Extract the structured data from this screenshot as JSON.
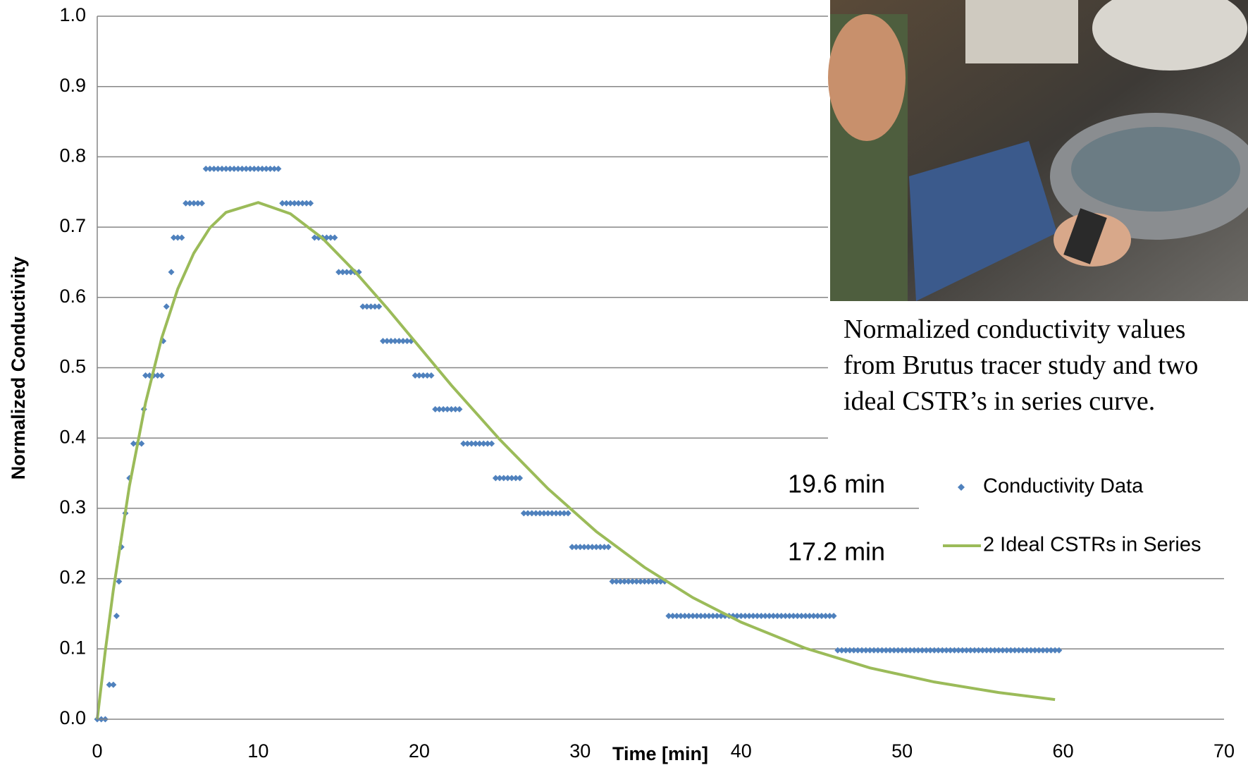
{
  "chart_data": {
    "type": "scatter",
    "xlabel": "Time [min]",
    "ylabel": "Normalized Conductivity",
    "xlim": [
      0,
      70
    ],
    "xticks": [
      0,
      10,
      20,
      30,
      40,
      50,
      60,
      70
    ],
    "ylim": [
      0,
      1
    ],
    "yticks": [
      {
        "value": 0,
        "label": "0.0"
      },
      0.1,
      0.2,
      0.3,
      0.4,
      0.5,
      0.6,
      0.7,
      0.8,
      0.9,
      {
        "value": 1,
        "label": "1.0"
      }
    ],
    "grid": true,
    "series": [
      {
        "name": "Conductivity Data",
        "type": "scatter",
        "color": "#4f81bd",
        "x": [
          0,
          0.25,
          0.5,
          0.75,
          1,
          1.2,
          1.35,
          1.5,
          1.75,
          2,
          2.25,
          2.5,
          2.75,
          2.9,
          3,
          3.25,
          3.5,
          3.75,
          4,
          4.1,
          4.3,
          4.6,
          4.75,
          5,
          5.25,
          5.5,
          5.75,
          6,
          6.25,
          6.5,
          6.75,
          7,
          7.25,
          7.5,
          7.75,
          8,
          8.25,
          8.5,
          8.75,
          9,
          9.25,
          9.5,
          9.75,
          10,
          10.25,
          10.5,
          10.75,
          11,
          11.25,
          11.5,
          11.75,
          12,
          12.25,
          12.5,
          12.75,
          13,
          13.25,
          13.5,
          13.75,
          14,
          14.25,
          14.5,
          14.75,
          15,
          15.25,
          15.5,
          15.75,
          16,
          16.25,
          16.5,
          16.75,
          17,
          17.25,
          17.5,
          17.75,
          18,
          18.25,
          18.5,
          18.75,
          19,
          19.25,
          19.5,
          19.75,
          20,
          20.25,
          20.5,
          20.75,
          21,
          21.25,
          21.5,
          21.75,
          22,
          22.25,
          22.5,
          22.75,
          23,
          23.25,
          23.5,
          23.75,
          24,
          24.25,
          24.5,
          24.75,
          25,
          25.25,
          25.5,
          25.75,
          26,
          26.25,
          26.5,
          26.75,
          27,
          27.25,
          27.5,
          27.75,
          28,
          28.25,
          28.5,
          28.75,
          29,
          29.25,
          29.5,
          29.75,
          30,
          30.25,
          30.5,
          30.75,
          31,
          31.25,
          31.5,
          31.75,
          32,
          32.25,
          32.5,
          32.75,
          33,
          33.25,
          33.5,
          33.75,
          34,
          34.25,
          34.5,
          34.75,
          35,
          35.25,
          35.5,
          35.75,
          36,
          36.25,
          36.5,
          36.75,
          37,
          37.25,
          37.5,
          37.75,
          38,
          38.25,
          38.5,
          38.75,
          39,
          39.25,
          39.5,
          39.75,
          40,
          40.25,
          40.5,
          40.75,
          41,
          41.25,
          41.5,
          41.75,
          42,
          42.25,
          42.5,
          42.75,
          43,
          43.25,
          43.5,
          43.75,
          44,
          44.25,
          44.5,
          44.75,
          45,
          45.25,
          45.5,
          45.75,
          46,
          46.25,
          46.5,
          46.75,
          47,
          47.25,
          47.5,
          47.75,
          48,
          48.25,
          48.5,
          48.75,
          49,
          49.25,
          49.5,
          49.75,
          50,
          50.25,
          50.5,
          50.75,
          51,
          51.25,
          51.5,
          51.75,
          52,
          52.25,
          52.5,
          52.75,
          53,
          53.25,
          53.5,
          53.75,
          54,
          54.25,
          54.5,
          54.75,
          55,
          55.25,
          55.5,
          55.75,
          56,
          56.25,
          56.5,
          56.75,
          57,
          57.25,
          57.5,
          57.75,
          58,
          58.25,
          58.5,
          58.75,
          59,
          59.25,
          59.5,
          59.75
        ],
        "values": [
          0,
          0,
          0,
          0.049,
          0.049,
          0.147,
          0.196,
          0.245,
          0.293,
          0.343,
          0.392,
          0.392,
          0.392,
          0.441,
          0.489,
          0.489,
          0.489,
          0.489,
          0.489,
          0.538,
          0.587,
          0.636,
          0.685,
          0.685,
          0.685,
          0.734,
          0.734,
          0.734,
          0.734,
          0.734,
          0.783,
          0.783,
          0.783,
          0.783,
          0.783,
          0.783,
          0.783,
          0.783,
          0.783,
          0.783,
          0.783,
          0.783,
          0.783,
          0.783,
          0.783,
          0.783,
          0.783,
          0.783,
          0.783,
          0.734,
          0.734,
          0.734,
          0.734,
          0.734,
          0.734,
          0.734,
          0.734,
          0.685,
          0.685,
          0.685,
          0.685,
          0.685,
          0.685,
          0.636,
          0.636,
          0.636,
          0.636,
          0.636,
          0.636,
          0.587,
          0.587,
          0.587,
          0.587,
          0.587,
          0.538,
          0.538,
          0.538,
          0.538,
          0.538,
          0.538,
          0.538,
          0.538,
          0.489,
          0.489,
          0.489,
          0.489,
          0.489,
          0.441,
          0.441,
          0.441,
          0.441,
          0.441,
          0.441,
          0.441,
          0.392,
          0.392,
          0.392,
          0.392,
          0.392,
          0.392,
          0.392,
          0.392,
          0.343,
          0.343,
          0.343,
          0.343,
          0.343,
          0.343,
          0.343,
          0.293,
          0.293,
          0.293,
          0.293,
          0.293,
          0.293,
          0.293,
          0.293,
          0.293,
          0.293,
          0.293,
          0.293,
          0.245,
          0.245,
          0.245,
          0.245,
          0.245,
          0.245,
          0.245,
          0.245,
          0.245,
          0.245,
          0.196,
          0.196,
          0.196,
          0.196,
          0.196,
          0.196,
          0.196,
          0.196,
          0.196,
          0.196,
          0.196,
          0.196,
          0.196,
          0.196,
          0.147,
          0.147,
          0.147,
          0.147,
          0.147,
          0.147,
          0.147,
          0.147,
          0.147,
          0.147,
          0.147,
          0.147,
          0.147,
          0.147,
          0.147,
          0.147,
          0.147,
          0.147,
          0.147,
          0.147,
          0.147,
          0.147,
          0.147,
          0.147,
          0.147,
          0.147,
          0.147,
          0.147,
          0.147,
          0.147,
          0.147,
          0.147,
          0.147,
          0.147,
          0.147,
          0.147,
          0.147,
          0.147,
          0.147,
          0.147,
          0.147,
          0.147,
          0.098,
          0.098,
          0.098,
          0.098,
          0.098,
          0.098,
          0.098,
          0.098,
          0.098,
          0.098,
          0.098,
          0.098,
          0.098,
          0.098,
          0.098,
          0.098,
          0.098,
          0.098,
          0.098,
          0.098,
          0.098,
          0.098,
          0.098,
          0.098,
          0.098,
          0.098,
          0.098,
          0.098,
          0.098,
          0.098,
          0.098,
          0.098,
          0.098,
          0.098,
          0.098,
          0.098,
          0.098,
          0.098,
          0.098,
          0.098,
          0.098,
          0.098,
          0.098,
          0.098,
          0.098,
          0.098,
          0.098,
          0.098,
          0.098,
          0.098,
          0.098,
          0.098,
          0.098,
          0.098,
          0.098,
          0.098
        ]
      },
      {
        "name": "2 Ideal CSTRs in Series",
        "type": "line",
        "color": "#9bbb59",
        "x": [
          0,
          0.5,
          1,
          2,
          3,
          4,
          5,
          6,
          7,
          8,
          10,
          12,
          14,
          16,
          18,
          20,
          22,
          25,
          28,
          31,
          34,
          37,
          40,
          44,
          48,
          52,
          56,
          59.5
        ],
        "values": [
          0,
          0.097,
          0.184,
          0.332,
          0.45,
          0.542,
          0.612,
          0.663,
          0.699,
          0.721,
          0.735,
          0.719,
          0.684,
          0.637,
          0.585,
          0.53,
          0.475,
          0.398,
          0.328,
          0.267,
          0.216,
          0.173,
          0.138,
          0.101,
          0.073,
          0.053,
          0.038,
          0.028
        ]
      }
    ],
    "annotations": [
      "19.6 min",
      "17.2 min"
    ],
    "caption": "Normalized conductivity values from Brutus tracer study and two ideal CSTR’s in series curve."
  }
}
